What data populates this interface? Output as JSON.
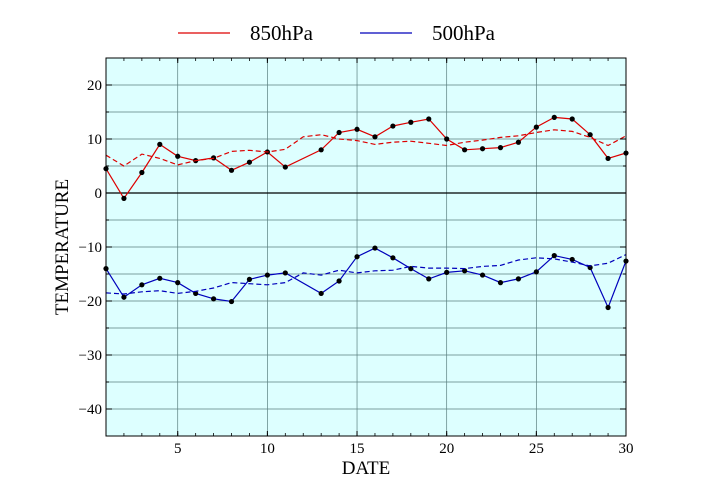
{
  "chart_data": {
    "type": "line",
    "title": "",
    "xlabel": "DATE",
    "ylabel": "TEMPERATURE",
    "xlim": [
      1,
      30
    ],
    "ylim": [
      -45,
      25
    ],
    "xticks": [
      5,
      10,
      15,
      20,
      25,
      30
    ],
    "xtick_labels": [
      "5",
      "10",
      "15",
      "20",
      "25",
      "30"
    ],
    "yticks": [
      20,
      10,
      0,
      -10,
      -20,
      -30,
      -40
    ],
    "ytick_labels": [
      "20",
      "10",
      "0",
      "−10",
      "−20",
      "−30",
      "−40"
    ],
    "grid": true,
    "zero_line": true,
    "legend_position": "top",
    "plot_background": "#ddffff",
    "series": [
      {
        "name": "850hPa",
        "color": "#dd0000",
        "style": "solid",
        "markers": true,
        "x": [
          1,
          2,
          3,
          4,
          5,
          6,
          7,
          8,
          9,
          10,
          11,
          13,
          14,
          15,
          16,
          17,
          18,
          19,
          20,
          21,
          22,
          23,
          24,
          25,
          26,
          27,
          28,
          29,
          30
        ],
        "y": [
          4.5,
          -1.0,
          3.8,
          9.0,
          6.8,
          6.0,
          6.5,
          4.2,
          5.7,
          7.6,
          4.8,
          8.0,
          11.2,
          11.8,
          10.4,
          12.4,
          13.1,
          13.7,
          10.0,
          8.0,
          8.2,
          8.4,
          9.4,
          12.2,
          14.0,
          13.7,
          10.8,
          6.4,
          7.4
        ]
      },
      {
        "name": "",
        "color": "#dd0000",
        "style": "dashed",
        "markers": false,
        "x": [
          1,
          2,
          3,
          4,
          5,
          6,
          7,
          8,
          9,
          10,
          11,
          12,
          13,
          14,
          15,
          16,
          17,
          18,
          19,
          20,
          21,
          22,
          23,
          24,
          25,
          26,
          27,
          28,
          29,
          30
        ],
        "y": [
          7.0,
          5.0,
          7.2,
          6.4,
          5.2,
          6.0,
          6.4,
          7.7,
          7.9,
          7.6,
          8.1,
          10.4,
          10.8,
          10.0,
          9.7,
          9.0,
          9.4,
          9.6,
          9.2,
          8.8,
          9.4,
          9.8,
          10.3,
          10.6,
          11.2,
          11.7,
          11.4,
          10.3,
          8.8,
          10.6
        ]
      },
      {
        "name": "500hPa",
        "color": "#0000bb",
        "style": "solid",
        "markers": true,
        "x": [
          1,
          2,
          3,
          4,
          5,
          6,
          7,
          8,
          9,
          10,
          11,
          13,
          14,
          15,
          16,
          17,
          18,
          19,
          20,
          21,
          22,
          23,
          24,
          25,
          26,
          27,
          28,
          29,
          30
        ],
        "y": [
          -14.0,
          -19.3,
          -17.0,
          -15.8,
          -16.6,
          -18.6,
          -19.6,
          -20.1,
          -16.0,
          -15.2,
          -14.8,
          -18.6,
          -16.3,
          -11.8,
          -10.2,
          -12.0,
          -14.0,
          -15.9,
          -14.7,
          -14.4,
          -15.2,
          -16.6,
          -15.9,
          -14.6,
          -11.6,
          -12.3,
          -13.8,
          -21.2,
          -12.6
        ]
      },
      {
        "name": "",
        "color": "#0000bb",
        "style": "dashed",
        "markers": false,
        "x": [
          1,
          2,
          3,
          4,
          5,
          6,
          7,
          8,
          9,
          10,
          11,
          12,
          13,
          14,
          15,
          16,
          17,
          18,
          19,
          20,
          21,
          22,
          23,
          24,
          25,
          26,
          27,
          28,
          29,
          30
        ],
        "y": [
          -18.5,
          -18.7,
          -18.3,
          -18.1,
          -18.6,
          -18.2,
          -17.6,
          -16.6,
          -16.8,
          -17.0,
          -16.6,
          -14.8,
          -15.2,
          -14.3,
          -14.8,
          -14.4,
          -14.3,
          -13.6,
          -13.9,
          -13.9,
          -14.0,
          -13.6,
          -13.4,
          -12.4,
          -12.0,
          -12.2,
          -12.8,
          -13.5,
          -13.0,
          -11.4
        ]
      }
    ]
  }
}
